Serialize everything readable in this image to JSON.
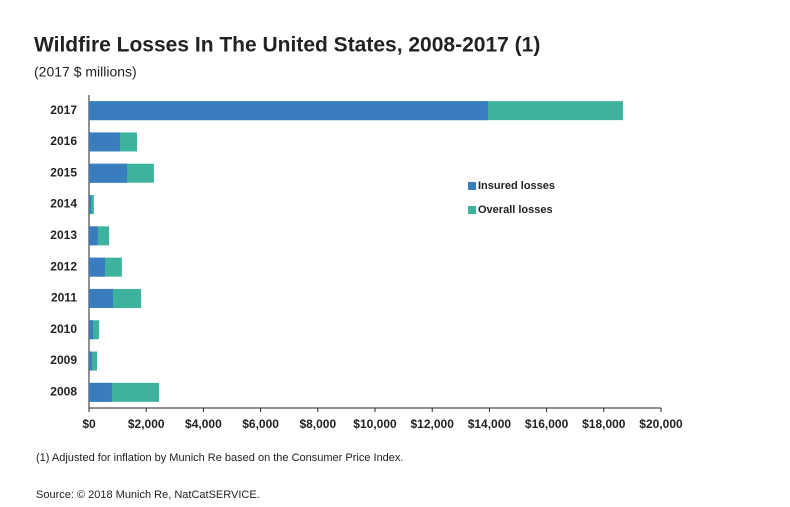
{
  "chart_data": {
    "type": "hbar-overlap",
    "title": "Wildfire Losses In The United States, 2008-2017 (1)",
    "subtitle": "(2017 $ millions)",
    "footnote": "(1) Adjusted for inflation by Munich Re based on the Consumer Price Index.",
    "source": "Source: © 2018 Munich Re, NatCatSERVICE.",
    "categories": [
      "2017",
      "2016",
      "2015",
      "2014",
      "2013",
      "2012",
      "2011",
      "2010",
      "2009",
      "2008"
    ],
    "series": [
      {
        "name": "Overall losses",
        "color": "#3db39e",
        "values": [
          18670,
          1680,
          2270,
          170,
          700,
          1150,
          1820,
          350,
          280,
          2450
        ]
      },
      {
        "name": "Insured losses",
        "color": "#3a7dbf",
        "values": [
          13950,
          1080,
          1330,
          70,
          310,
          560,
          840,
          140,
          100,
          800
        ]
      }
    ],
    "xlim": [
      0,
      20000
    ],
    "xticks": [
      {
        "value": 0,
        "label": "$0"
      },
      {
        "value": 2000,
        "label": "$2,000"
      },
      {
        "value": 4000,
        "label": "$4,000"
      },
      {
        "value": 6000,
        "label": "$6,000"
      },
      {
        "value": 8000,
        "label": "$8,000"
      },
      {
        "value": 10000,
        "label": "$10,000"
      },
      {
        "value": 12000,
        "label": "$12,000"
      },
      {
        "value": 14000,
        "label": "$14,000"
      },
      {
        "value": 16000,
        "label": "$16,000"
      },
      {
        "value": 18000,
        "label": "$18,000"
      },
      {
        "value": 20000,
        "label": "$20,000"
      }
    ],
    "grid": false,
    "legend": "center-right"
  }
}
